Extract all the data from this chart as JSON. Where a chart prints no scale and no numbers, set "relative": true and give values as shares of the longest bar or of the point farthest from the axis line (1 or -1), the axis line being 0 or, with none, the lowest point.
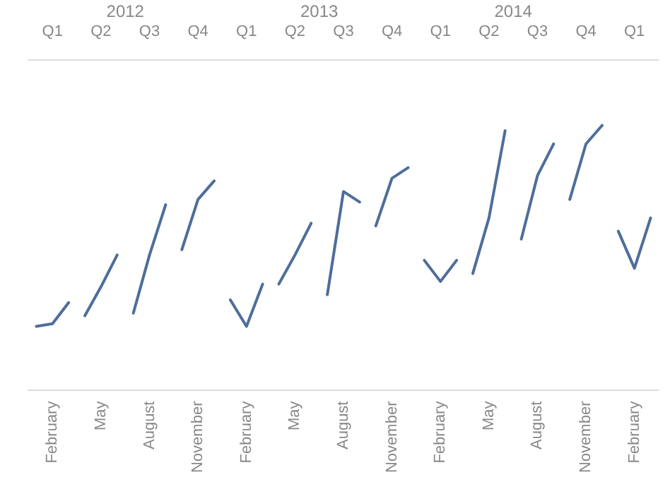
{
  "chart_data": {
    "type": "line",
    "relative": true,
    "categories": [
      null,
      "February",
      null,
      null,
      "May",
      null,
      null,
      "August",
      null,
      null,
      "November",
      null,
      null,
      "February",
      null,
      null,
      "May",
      null,
      null,
      "August",
      null,
      null,
      "November",
      null,
      null,
      "February",
      null,
      null,
      "May",
      null,
      null,
      "August",
      null,
      null,
      "November",
      null,
      null,
      "February",
      null
    ],
    "annotations": [
      "2012",
      "2013",
      "2014",
      "Q1",
      "Q2",
      "Q3",
      "Q4",
      "Q1",
      "Q2",
      "Q3",
      "Q4",
      "Q1",
      "Q2",
      "Q3",
      "Q4",
      "Q1"
    ],
    "series": [
      {
        "color": "#4e6e9a",
        "values": [
          0.24,
          0.25,
          0.33,
          null,
          null,
          null,
          null,
          null,
          null,
          null,
          null,
          null,
          null,
          null,
          null,
          null,
          null,
          null,
          null,
          null,
          null,
          null,
          null,
          null,
          null,
          null,
          null,
          null,
          null,
          null,
          null,
          null,
          null,
          null,
          null,
          null,
          null,
          null,
          null
        ]
      },
      {
        "color": "#4e6e9a",
        "values": [
          null,
          null,
          null,
          0.28,
          0.39,
          0.51,
          null,
          null,
          null,
          null,
          null,
          null,
          null,
          null,
          null,
          null,
          null,
          null,
          null,
          null,
          null,
          null,
          null,
          null,
          null,
          null,
          null,
          null,
          null,
          null,
          null,
          null,
          null,
          null,
          null,
          null,
          null,
          null,
          null
        ]
      },
      {
        "color": "#4e6e9a",
        "values": [
          null,
          null,
          null,
          null,
          null,
          null,
          0.29,
          0.51,
          0.7,
          null,
          null,
          null,
          null,
          null,
          null,
          null,
          null,
          null,
          null,
          null,
          null,
          null,
          null,
          null,
          null,
          null,
          null,
          null,
          null,
          null,
          null,
          null,
          null,
          null,
          null,
          null,
          null,
          null,
          null
        ]
      },
      {
        "color": "#4e6e9a",
        "values": [
          null,
          null,
          null,
          null,
          null,
          null,
          null,
          null,
          null,
          0.53,
          0.72,
          0.79,
          null,
          null,
          null,
          null,
          null,
          null,
          null,
          null,
          null,
          null,
          null,
          null,
          null,
          null,
          null,
          null,
          null,
          null,
          null,
          null,
          null,
          null,
          null,
          null,
          null,
          null,
          null
        ]
      },
      {
        "color": "#4e6e9a",
        "values": [
          null,
          null,
          null,
          null,
          null,
          null,
          null,
          null,
          null,
          null,
          null,
          null,
          0.34,
          0.24,
          0.4,
          null,
          null,
          null,
          null,
          null,
          null,
          null,
          null,
          null,
          null,
          null,
          null,
          null,
          null,
          null,
          null,
          null,
          null,
          null,
          null,
          null,
          null,
          null,
          null
        ]
      },
      {
        "color": "#4e6e9a",
        "values": [
          null,
          null,
          null,
          null,
          null,
          null,
          null,
          null,
          null,
          null,
          null,
          null,
          null,
          null,
          null,
          0.4,
          0.51,
          0.63,
          null,
          null,
          null,
          null,
          null,
          null,
          null,
          null,
          null,
          null,
          null,
          null,
          null,
          null,
          null,
          null,
          null,
          null,
          null,
          null,
          null
        ]
      },
      {
        "color": "#4e6e9a",
        "values": [
          null,
          null,
          null,
          null,
          null,
          null,
          null,
          null,
          null,
          null,
          null,
          null,
          null,
          null,
          null,
          null,
          null,
          null,
          0.36,
          0.75,
          0.71,
          null,
          null,
          null,
          null,
          null,
          null,
          null,
          null,
          null,
          null,
          null,
          null,
          null,
          null,
          null,
          null,
          null,
          null
        ]
      },
      {
        "color": "#4e6e9a",
        "values": [
          null,
          null,
          null,
          null,
          null,
          null,
          null,
          null,
          null,
          null,
          null,
          null,
          null,
          null,
          null,
          null,
          null,
          null,
          null,
          null,
          null,
          0.62,
          0.8,
          0.84,
          null,
          null,
          null,
          null,
          null,
          null,
          null,
          null,
          null,
          null,
          null,
          null,
          null,
          null,
          null
        ]
      },
      {
        "color": "#4e6e9a",
        "values": [
          null,
          null,
          null,
          null,
          null,
          null,
          null,
          null,
          null,
          null,
          null,
          null,
          null,
          null,
          null,
          null,
          null,
          null,
          null,
          null,
          null,
          null,
          null,
          null,
          0.49,
          0.41,
          0.49,
          null,
          null,
          null,
          null,
          null,
          null,
          null,
          null,
          null,
          null,
          null,
          null
        ]
      },
      {
        "color": "#4e6e9a",
        "values": [
          null,
          null,
          null,
          null,
          null,
          null,
          null,
          null,
          null,
          null,
          null,
          null,
          null,
          null,
          null,
          null,
          null,
          null,
          null,
          null,
          null,
          null,
          null,
          null,
          null,
          null,
          null,
          0.44,
          0.65,
          0.98,
          null,
          null,
          null,
          null,
          null,
          null,
          null,
          null,
          null
        ]
      },
      {
        "color": "#4e6e9a",
        "values": [
          null,
          null,
          null,
          null,
          null,
          null,
          null,
          null,
          null,
          null,
          null,
          null,
          null,
          null,
          null,
          null,
          null,
          null,
          null,
          null,
          null,
          null,
          null,
          null,
          null,
          null,
          null,
          null,
          null,
          null,
          0.57,
          0.81,
          0.93,
          null,
          null,
          null,
          null,
          null,
          null
        ]
      },
      {
        "color": "#4e6e9a",
        "values": [
          null,
          null,
          null,
          null,
          null,
          null,
          null,
          null,
          null,
          null,
          null,
          null,
          null,
          null,
          null,
          null,
          null,
          null,
          null,
          null,
          null,
          null,
          null,
          null,
          null,
          null,
          null,
          null,
          null,
          null,
          null,
          null,
          null,
          0.72,
          0.93,
          1,
          null,
          null,
          null
        ]
      },
      {
        "color": "#4e6e9a",
        "values": [
          null,
          null,
          null,
          null,
          null,
          null,
          null,
          null,
          null,
          null,
          null,
          null,
          null,
          null,
          null,
          null,
          null,
          null,
          null,
          null,
          null,
          null,
          null,
          null,
          null,
          null,
          null,
          null,
          null,
          null,
          null,
          null,
          null,
          null,
          null,
          null,
          0.6,
          0.46,
          0.65
        ]
      }
    ]
  }
}
